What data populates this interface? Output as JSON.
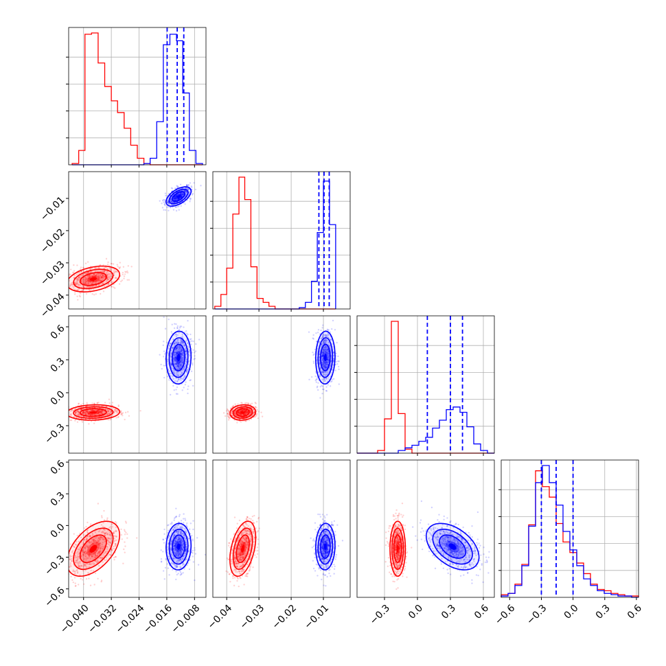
{
  "chart_data": {
    "type": "corner",
    "parameters": [
      {
        "lim": [
          -0.0443,
          -0.0047
        ],
        "ticks": [
          -0.04,
          -0.032,
          -0.024,
          -0.016,
          -0.008
        ],
        "tick_labels": [
          "−0.040",
          "−0.032",
          "−0.024",
          "−0.016",
          "−0.008"
        ]
      },
      {
        "lim": [
          -0.0443,
          -0.0017
        ],
        "ticks": [
          -0.04,
          -0.03,
          -0.02,
          -0.01
        ],
        "tick_labels": [
          "−0.04",
          "−0.03",
          "−0.02",
          "−0.01"
        ]
      },
      {
        "lim": [
          -0.55,
          0.7
        ],
        "ticks": [
          -0.3,
          0.0,
          0.3,
          0.6
        ],
        "tick_labels": [
          "−0.3",
          "0.0",
          "0.3",
          "0.6"
        ]
      },
      {
        "lim": [
          -0.68,
          0.62
        ],
        "ticks": [
          -0.6,
          -0.3,
          0.0,
          0.3,
          0.6
        ],
        "tick_labels": [
          "−0.6",
          "−0.3",
          "0.0",
          "0.3",
          "0.6"
        ]
      }
    ],
    "series": [
      {
        "color": "#ff0000",
        "quantile_lines": false,
        "histograms": [
          {
            "edges": [
              -0.0433,
              -0.0414,
              -0.0396,
              -0.0377,
              -0.0358,
              -0.0339,
              -0.032,
              -0.0302,
              -0.0283,
              -0.0264,
              -0.0245,
              -0.0226,
              -0.0208,
              -0.0189,
              -0.017,
              -0.0151,
              -0.0132,
              -0.0114,
              -0.0095,
              -0.0076,
              -0.0057
            ],
            "counts": [
              0.01,
              0.11,
              1.0,
              1.01,
              0.78,
              0.6,
              0.49,
              0.4,
              0.28,
              0.15,
              0.05,
              0.01,
              0,
              0,
              0,
              0,
              0,
              0,
              0,
              0
            ]
          },
          {
            "edges": [
              -0.0437,
              -0.0418,
              -0.04,
              -0.0381,
              -0.0362,
              -0.0344,
              -0.0325,
              -0.0306,
              -0.0287,
              -0.0269,
              -0.025,
              -0.0231,
              -0.0212,
              -0.0194,
              -0.0175,
              -0.0156,
              -0.0137,
              -0.0119,
              -0.01,
              -0.0081,
              -0.0062
            ],
            "counts": [
              0.02,
              0.11,
              0.31,
              0.72,
              1.0,
              0.83,
              0.32,
              0.08,
              0.05,
              0.02,
              0,
              0,
              0,
              0,
              0,
              0,
              0,
              0,
              0,
              0
            ]
          },
          {
            "edges": [
              -0.55,
              -0.4875,
              -0.425,
              -0.3625,
              -0.3,
              -0.2375,
              -0.175,
              -0.1125,
              -0.05,
              0.0125,
              0.075,
              0.1375,
              0.2,
              0.2625,
              0.325,
              0.3875,
              0.45,
              0.5125,
              0.575,
              0.6375,
              0.7
            ],
            "counts": [
              0,
              0,
              0,
              0.02,
              0.26,
              1.0,
              0.3,
              0.03,
              0,
              0,
              0,
              0,
              0,
              0,
              0,
              0,
              0,
              0,
              0,
              0
            ]
          },
          {
            "edges": [
              -0.68,
              -0.615,
              -0.55,
              -0.485,
              -0.42,
              -0.355,
              -0.29,
              -0.225,
              -0.16,
              -0.095,
              -0.03,
              0.035,
              0.1,
              0.165,
              0.23,
              0.295,
              0.36,
              0.425,
              0.49,
              0.555,
              0.62
            ],
            "counts": [
              0.02,
              0.03,
              0.1,
              0.25,
              0.55,
              0.96,
              0.84,
              0.76,
              0.56,
              0.42,
              0.34,
              0.26,
              0.18,
              0.1,
              0.06,
              0.05,
              0.03,
              0.02,
              0.01,
              0.01
            ]
          }
        ],
        "mean": [
          -0.0372,
          -0.035,
          -0.18,
          -0.22
        ],
        "std": [
          0.0038,
          0.002,
          0.035,
          0.13
        ],
        "correlation": [
          [
            1.0,
            0.35,
            0.1,
            0.5
          ],
          [
            0.35,
            1.0,
            0.1,
            0.4
          ],
          [
            0.1,
            0.1,
            1.0,
            0.0
          ],
          [
            0.5,
            0.4,
            0.0,
            1.0
          ]
        ]
      },
      {
        "color": "#0000ff",
        "quantile_lines": true,
        "histograms": [
          {
            "edges": [
              -0.0433,
              -0.0414,
              -0.0396,
              -0.0377,
              -0.0358,
              -0.0339,
              -0.032,
              -0.0302,
              -0.0283,
              -0.0264,
              -0.0245,
              -0.0226,
              -0.0208,
              -0.0189,
              -0.017,
              -0.0151,
              -0.0132,
              -0.0114,
              -0.0095,
              -0.0076,
              -0.0057
            ],
            "counts": [
              0,
              0,
              0,
              0,
              0,
              0,
              0,
              0,
              0,
              0,
              0,
              0.01,
              0.05,
              0.33,
              0.92,
              1.0,
              0.95,
              0.55,
              0.11,
              0.01
            ]
          },
          {
            "edges": [
              -0.0437,
              -0.0418,
              -0.04,
              -0.0381,
              -0.0362,
              -0.0344,
              -0.0325,
              -0.0306,
              -0.0287,
              -0.0269,
              -0.025,
              -0.0231,
              -0.0212,
              -0.0194,
              -0.0175,
              -0.0156,
              -0.0137,
              -0.0119,
              -0.01,
              -0.0081,
              -0.0062
            ],
            "counts": [
              0,
              0,
              0,
              0,
              0,
              0,
              0,
              0,
              0,
              0,
              0,
              0,
              0,
              0,
              0.01,
              0.05,
              0.21,
              0.58,
              0.97,
              0.64
            ]
          },
          {
            "edges": [
              -0.55,
              -0.4875,
              -0.425,
              -0.3625,
              -0.3,
              -0.2375,
              -0.175,
              -0.1125,
              -0.05,
              0.0125,
              0.075,
              0.1375,
              0.2,
              0.2625,
              0.325,
              0.3875,
              0.45,
              0.5125,
              0.575,
              0.6375,
              0.7
            ],
            "counts": [
              0,
              0,
              0,
              0,
              0,
              0,
              0.02,
              0.04,
              0.06,
              0.09,
              0.12,
              0.19,
              0.25,
              0.33,
              0.35,
              0.31,
              0.2,
              0.07,
              0.02,
              0
            ]
          },
          {
            "edges": [
              -0.68,
              -0.615,
              -0.55,
              -0.485,
              -0.42,
              -0.355,
              -0.29,
              -0.225,
              -0.16,
              -0.095,
              -0.03,
              0.035,
              0.1,
              0.165,
              0.23,
              0.295,
              0.36,
              0.425,
              0.49,
              0.555,
              0.62
            ],
            "counts": [
              0.01,
              0.03,
              0.09,
              0.24,
              0.54,
              0.87,
              1.0,
              0.87,
              0.7,
              0.5,
              0.36,
              0.24,
              0.14,
              0.09,
              0.05,
              0.03,
              0.02,
              0.01,
              0.01,
              0
            ]
          }
        ],
        "quantiles": [
          [
            -0.0159,
            -0.013,
            -0.0111
          ],
          [
            -0.0114,
            -0.0098,
            -0.0082
          ],
          [
            0.09,
            0.3,
            0.41
          ],
          [
            -0.3,
            -0.16,
            0.0
          ]
        ],
        "mean": [
          -0.0126,
          -0.0094,
          0.32,
          -0.2
        ],
        "std": [
          0.0018,
          0.0015,
          0.12,
          0.11
        ],
        "correlation": [
          [
            1.0,
            0.55,
            0.05,
            0.05
          ],
          [
            0.55,
            1.0,
            0.05,
            0.05
          ],
          [
            0.05,
            0.05,
            1.0,
            -0.45
          ],
          [
            0.05,
            0.05,
            -0.45,
            1.0
          ]
        ]
      }
    ],
    "contour_levels_sigma": [
      0.5,
      1.0,
      1.5,
      2.0
    ],
    "grid": true
  }
}
